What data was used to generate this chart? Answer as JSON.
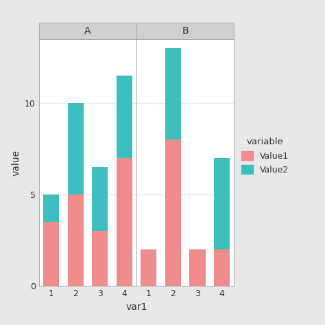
{
  "panels": [
    "A",
    "B"
  ],
  "var1": [
    1,
    2,
    3,
    4
  ],
  "value1": {
    "A": [
      3.5,
      5.0,
      3.0,
      7.0
    ],
    "B": [
      2.0,
      8.0,
      2.0,
      2.0
    ]
  },
  "value2": {
    "A": [
      1.5,
      5.0,
      3.5,
      4.5
    ],
    "B": [
      0.0,
      5.0,
      0.0,
      5.0
    ]
  },
  "color1": "#F08C8C",
  "color2": "#3CBFBF",
  "xlabel": "var1",
  "ylabel": "value",
  "legend_title": "variable",
  "legend_labels": [
    "Value1",
    "Value2"
  ],
  "ylim": [
    0,
    13.5
  ],
  "yticks": [
    0,
    5,
    10
  ],
  "bar_width": 0.65,
  "fig_bg": "#E8E8E8",
  "panel_bg": "#FFFFFF",
  "panel_header_color": "#D0D0D0",
  "grid_color": "#EBEBEB",
  "outer_border_color": "#AAAAAA"
}
